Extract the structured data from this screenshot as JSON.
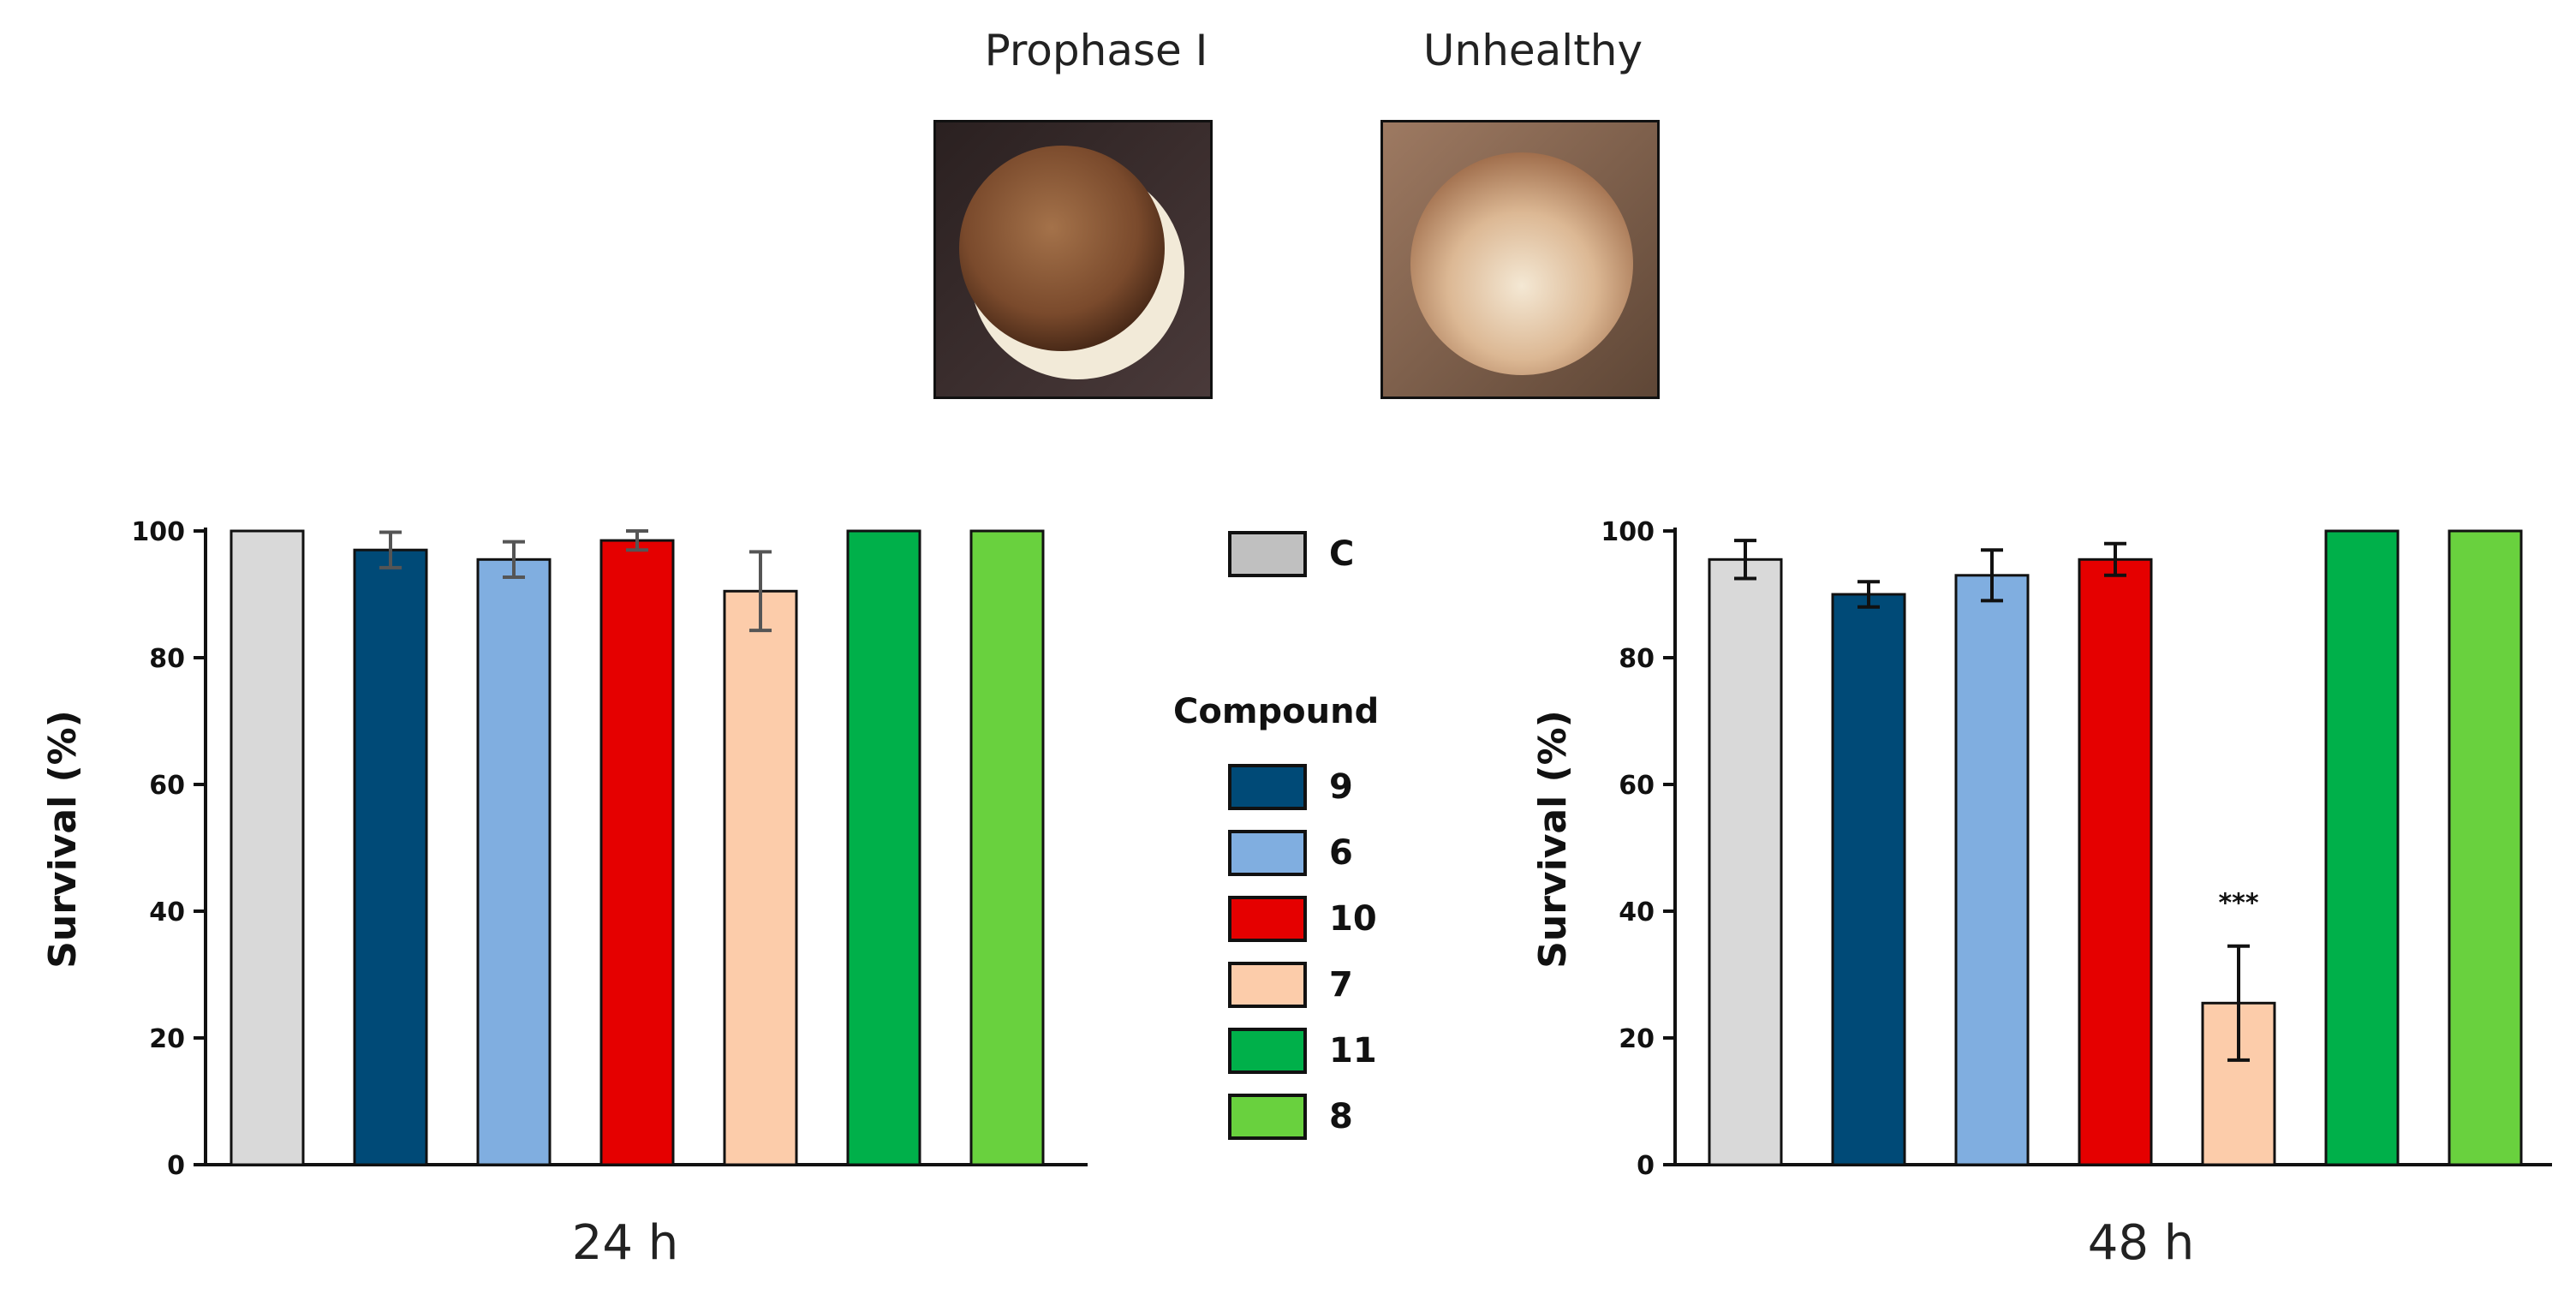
{
  "images": {
    "prophase_caption": "Prophase I",
    "unhealthy_caption": "Unhealthy"
  },
  "legend": {
    "control_label": "C",
    "title": "Compound",
    "items": [
      {
        "label": "9",
        "color": "#004a77"
      },
      {
        "label": "6",
        "color": "#80aee0"
      },
      {
        "label": "10",
        "color": "#e50000"
      },
      {
        "label": "7",
        "color": "#fcccaa"
      },
      {
        "label": "11",
        "color": "#00b04a"
      },
      {
        "label": "8",
        "color": "#69d13e"
      }
    ],
    "control_color": "#c0c0c0"
  },
  "chart_data": [
    {
      "type": "bar",
      "title": "24 h",
      "xlabel": "24 h",
      "ylabel": "Survival (%)",
      "ylim": [
        0,
        100
      ],
      "yticks": [
        0,
        20,
        40,
        60,
        80,
        100
      ],
      "categories": [
        "C",
        "9",
        "6",
        "10",
        "7",
        "11",
        "8"
      ],
      "values": [
        100,
        97,
        95.5,
        98.5,
        90.5,
        100,
        100
      ],
      "errors": [
        0,
        2.8,
        2.8,
        1.5,
        6.2,
        0,
        0
      ],
      "colors": [
        "#d9d9d9",
        "#004a77",
        "#80aee0",
        "#e50000",
        "#fcccaa",
        "#00b04a",
        "#69d13e"
      ],
      "error_color": "#555555",
      "annotations": []
    },
    {
      "type": "bar",
      "title": "48 h",
      "xlabel": "48 h",
      "ylabel": "Survival (%)",
      "ylim": [
        0,
        100
      ],
      "yticks": [
        0,
        20,
        40,
        60,
        80,
        100
      ],
      "categories": [
        "C",
        "9",
        "6",
        "10",
        "7",
        "11",
        "8"
      ],
      "values": [
        95.5,
        90,
        93,
        95.5,
        25.5,
        100,
        100
      ],
      "errors": [
        3,
        2,
        4,
        2.5,
        9,
        0,
        0
      ],
      "colors": [
        "#d9d9d9",
        "#004a77",
        "#80aee0",
        "#e50000",
        "#fcccaa",
        "#00b04a",
        "#69d13e"
      ],
      "error_color": "#111111",
      "annotations": [
        {
          "category": "7",
          "text": "***"
        }
      ]
    }
  ]
}
